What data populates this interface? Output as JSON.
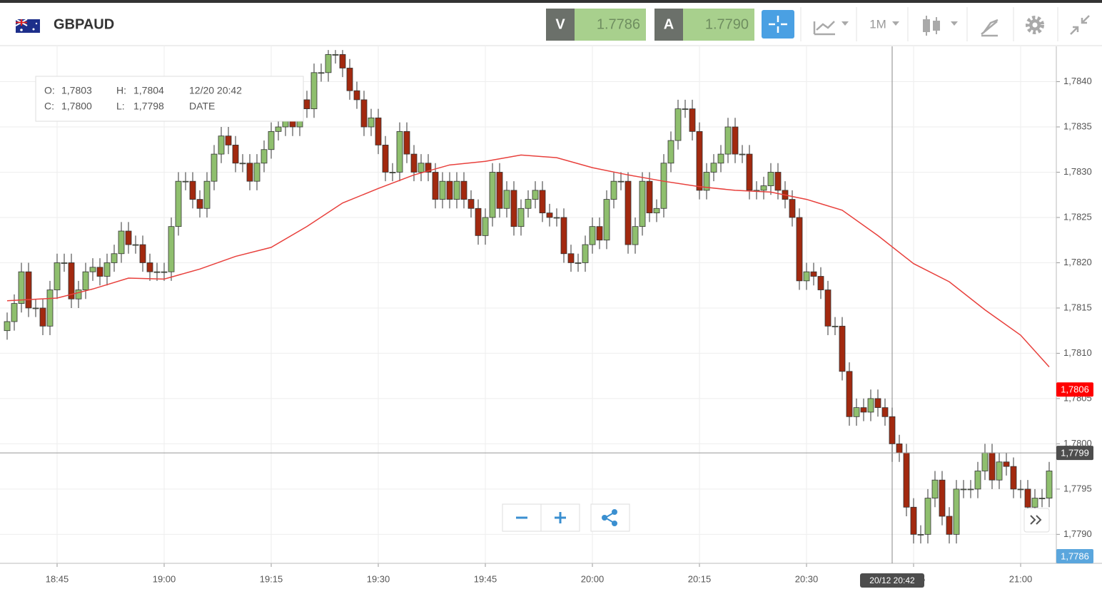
{
  "toolbar": {
    "symbol": "GBPAUD",
    "bid_label": "V",
    "bid": "1.7786",
    "ask_label": "A",
    "ask": "1.7790",
    "period": "1M"
  },
  "tooltip": {
    "o_label": "O:",
    "o": "1,7803",
    "h_label": "H:",
    "h": "1,7804",
    "date": "12/20 20:42",
    "c_label": "C:",
    "c": "1,7800",
    "l_label": "L:",
    "l": "1,7798",
    "date_label": "DATE"
  },
  "chart_data": {
    "type": "candlestick",
    "up_color": "#8fbf6e",
    "down_color": "#a2290f",
    "wick_color": "#333333",
    "xlim": [
      "18:37",
      "21:05"
    ],
    "xticks": [
      "18:45",
      "19:00",
      "19:15",
      "19:30",
      "19:45",
      "20:00",
      "20:15",
      "20:30",
      "20:45",
      "21:00"
    ],
    "ylim": [
      1.77868,
      1.78439
    ],
    "yticks": [
      {
        "value": 1.779,
        "label": "1,7790"
      },
      {
        "value": 1.7795,
        "label": "1,7795"
      },
      {
        "value": 1.78,
        "label": "1,7800"
      },
      {
        "value": 1.7805,
        "label": "1,7805"
      },
      {
        "value": 1.781,
        "label": "1,7810"
      },
      {
        "value": 1.7815,
        "label": "1,7815"
      },
      {
        "value": 1.782,
        "label": "1,7820"
      },
      {
        "value": 1.7825,
        "label": "1,7825"
      },
      {
        "value": 1.783,
        "label": "1,7830"
      },
      {
        "value": 1.7835,
        "label": "1,7835"
      },
      {
        "value": 1.784,
        "label": "1,7840"
      }
    ],
    "grid": true,
    "x": [
      "18:38",
      "18:39",
      "18:40",
      "18:41",
      "18:42",
      "18:43",
      "18:44",
      "18:45",
      "18:46",
      "18:47",
      "18:48",
      "18:49",
      "18:50",
      "18:51",
      "18:52",
      "18:53",
      "18:54",
      "18:55",
      "18:56",
      "18:57",
      "18:58",
      "18:59",
      "19:00",
      "19:01",
      "19:02",
      "19:03",
      "19:04",
      "19:05",
      "19:06",
      "19:07",
      "19:08",
      "19:09",
      "19:10",
      "19:11",
      "19:12",
      "19:13",
      "19:14",
      "19:15",
      "19:16",
      "19:17",
      "19:18",
      "19:19",
      "19:20",
      "19:21",
      "19:22",
      "19:23",
      "19:24",
      "19:25",
      "19:26",
      "19:27",
      "19:28",
      "19:29",
      "19:30",
      "19:31",
      "19:32",
      "19:33",
      "19:34",
      "19:35",
      "19:36",
      "19:37",
      "19:38",
      "19:39",
      "19:40",
      "19:41",
      "19:42",
      "19:43",
      "19:44",
      "19:45",
      "19:46",
      "19:47",
      "19:48",
      "19:49",
      "19:50",
      "19:51",
      "19:52",
      "19:53",
      "19:54",
      "19:55",
      "19:56",
      "19:57",
      "19:58",
      "19:59",
      "20:00",
      "20:01",
      "20:02",
      "20:03",
      "20:04",
      "20:05",
      "20:06",
      "20:07",
      "20:08",
      "20:09",
      "20:10",
      "20:11",
      "20:12",
      "20:13",
      "20:14",
      "20:15",
      "20:16",
      "20:17",
      "20:18",
      "20:19",
      "20:20",
      "20:21",
      "20:22",
      "20:23",
      "20:24",
      "20:25",
      "20:26",
      "20:27",
      "20:28",
      "20:29",
      "20:30",
      "20:31",
      "20:32",
      "20:33",
      "20:34",
      "20:35",
      "20:36",
      "20:37",
      "20:38",
      "20:39",
      "20:40",
      "20:41",
      "20:42",
      "20:43",
      "20:44",
      "20:45",
      "20:46",
      "20:47",
      "20:48",
      "20:49",
      "20:50",
      "20:51",
      "20:52",
      "20:53",
      "20:54",
      "20:55",
      "20:56",
      "20:57",
      "20:58",
      "20:59",
      "21:00",
      "21:01",
      "21:02",
      "21:03",
      "21:04"
    ],
    "candles": [
      [
        1.78125,
        1.78145,
        1.78115,
        1.78135
      ],
      [
        1.78135,
        1.78165,
        1.78125,
        1.78155
      ],
      [
        1.78155,
        1.782,
        1.78145,
        1.7819
      ],
      [
        1.7819,
        1.782,
        1.7814,
        1.7815
      ],
      [
        1.7815,
        1.7816,
        1.7814,
        1.7815
      ],
      [
        1.7815,
        1.7816,
        1.7812,
        1.7813
      ],
      [
        1.7813,
        1.7818,
        1.7812,
        1.7817
      ],
      [
        1.7817,
        1.7821,
        1.7816,
        1.782
      ],
      [
        1.782,
        1.7821,
        1.7819,
        1.782
      ],
      [
        1.782,
        1.7821,
        1.7815,
        1.7816
      ],
      [
        1.7816,
        1.7818,
        1.7815,
        1.7817
      ],
      [
        1.7817,
        1.782,
        1.7816,
        1.7819
      ],
      [
        1.7819,
        1.78205,
        1.7818,
        1.78195
      ],
      [
        1.78195,
        1.78205,
        1.78175,
        1.78185
      ],
      [
        1.78185,
        1.7821,
        1.78175,
        1.782
      ],
      [
        1.782,
        1.7822,
        1.7819,
        1.7821
      ],
      [
        1.7821,
        1.78245,
        1.782,
        1.78235
      ],
      [
        1.78235,
        1.78245,
        1.7821,
        1.7822
      ],
      [
        1.7822,
        1.7823,
        1.7821,
        1.7822
      ],
      [
        1.7822,
        1.7823,
        1.7819,
        1.782
      ],
      [
        1.782,
        1.7821,
        1.7818,
        1.7819
      ],
      [
        1.7819,
        1.782,
        1.7818,
        1.7819
      ],
      [
        1.7819,
        1.782,
        1.7818,
        1.7819
      ],
      [
        1.7819,
        1.7825,
        1.7818,
        1.7824
      ],
      [
        1.7824,
        1.783,
        1.7823,
        1.7829
      ],
      [
        1.7829,
        1.783,
        1.7828,
        1.7829
      ],
      [
        1.7829,
        1.783,
        1.7826,
        1.7827
      ],
      [
        1.7827,
        1.7828,
        1.7825,
        1.7826
      ],
      [
        1.7826,
        1.783,
        1.7825,
        1.7829
      ],
      [
        1.7829,
        1.7833,
        1.7828,
        1.7832
      ],
      [
        1.7832,
        1.7835,
        1.7831,
        1.7834
      ],
      [
        1.7834,
        1.7835,
        1.7832,
        1.7833
      ],
      [
        1.7833,
        1.7834,
        1.783,
        1.7831
      ],
      [
        1.7831,
        1.7832,
        1.783,
        1.7831
      ],
      [
        1.7831,
        1.7832,
        1.7828,
        1.7829
      ],
      [
        1.7829,
        1.7832,
        1.7828,
        1.7831
      ],
      [
        1.7831,
        1.78335,
        1.783,
        1.78325
      ],
      [
        1.78325,
        1.78355,
        1.78315,
        1.78345
      ],
      [
        1.78345,
        1.7836,
        1.78335,
        1.7835
      ],
      [
        1.7835,
        1.7837,
        1.7834,
        1.7836
      ],
      [
        1.7836,
        1.7837,
        1.7834,
        1.7835
      ],
      [
        1.7835,
        1.7839,
        1.7834,
        1.7838
      ],
      [
        1.7838,
        1.7839,
        1.7836,
        1.7837
      ],
      [
        1.7837,
        1.7842,
        1.7836,
        1.7841
      ],
      [
        1.7841,
        1.7842,
        1.784,
        1.7841
      ],
      [
        1.7841,
        1.78435,
        1.784,
        1.7843
      ],
      [
        1.7843,
        1.78435,
        1.7842,
        1.7843
      ],
      [
        1.7843,
        1.78435,
        1.78405,
        1.78415
      ],
      [
        1.78415,
        1.78425,
        1.7838,
        1.7839
      ],
      [
        1.7839,
        1.784,
        1.7837,
        1.7838
      ],
      [
        1.7838,
        1.7839,
        1.7834,
        1.7835
      ],
      [
        1.7835,
        1.7837,
        1.7834,
        1.7836
      ],
      [
        1.7836,
        1.7837,
        1.7832,
        1.7833
      ],
      [
        1.7833,
        1.7834,
        1.7829,
        1.783
      ],
      [
        1.783,
        1.7831,
        1.7829,
        1.783
      ],
      [
        1.783,
        1.78355,
        1.7829,
        1.78345
      ],
      [
        1.78345,
        1.78355,
        1.7831,
        1.7832
      ],
      [
        1.7832,
        1.7833,
        1.7829,
        1.783
      ],
      [
        1.783,
        1.7832,
        1.7829,
        1.7831
      ],
      [
        1.7831,
        1.7832,
        1.7829,
        1.783
      ],
      [
        1.783,
        1.7831,
        1.7826,
        1.7827
      ],
      [
        1.7827,
        1.783,
        1.7826,
        1.7829
      ],
      [
        1.7829,
        1.783,
        1.7826,
        1.7827
      ],
      [
        1.7827,
        1.783,
        1.7826,
        1.7829
      ],
      [
        1.7829,
        1.783,
        1.7826,
        1.7827
      ],
      [
        1.7827,
        1.7828,
        1.7825,
        1.7826
      ],
      [
        1.7826,
        1.7827,
        1.7822,
        1.7823
      ],
      [
        1.7823,
        1.7826,
        1.7822,
        1.7825
      ],
      [
        1.7825,
        1.7831,
        1.7824,
        1.783
      ],
      [
        1.783,
        1.7831,
        1.7825,
        1.7826
      ],
      [
        1.7826,
        1.7829,
        1.7825,
        1.7828
      ],
      [
        1.7828,
        1.7829,
        1.7823,
        1.7824
      ],
      [
        1.7824,
        1.7827,
        1.7823,
        1.7826
      ],
      [
        1.7826,
        1.7828,
        1.7825,
        1.7827
      ],
      [
        1.7827,
        1.7829,
        1.7826,
        1.7828
      ],
      [
        1.7828,
        1.7829,
        1.78245,
        1.78255
      ],
      [
        1.78255,
        1.78265,
        1.7824,
        1.7825
      ],
      [
        1.7825,
        1.7826,
        1.7824,
        1.7825
      ],
      [
        1.7825,
        1.7826,
        1.782,
        1.7821
      ],
      [
        1.7821,
        1.7822,
        1.7819,
        1.782
      ],
      [
        1.782,
        1.7821,
        1.7819,
        1.782
      ],
      [
        1.782,
        1.7823,
        1.7819,
        1.7822
      ],
      [
        1.7822,
        1.7825,
        1.7821,
        1.7824
      ],
      [
        1.7824,
        1.7825,
        1.78215,
        1.78225
      ],
      [
        1.78225,
        1.7828,
        1.78215,
        1.7827
      ],
      [
        1.7827,
        1.783,
        1.7826,
        1.7829
      ],
      [
        1.7829,
        1.783,
        1.7828,
        1.7829
      ],
      [
        1.7829,
        1.783,
        1.7821,
        1.7822
      ],
      [
        1.7822,
        1.7825,
        1.7821,
        1.7824
      ],
      [
        1.7824,
        1.783,
        1.7823,
        1.7829
      ],
      [
        1.7829,
        1.783,
        1.78245,
        1.78255
      ],
      [
        1.78255,
        1.7827,
        1.78245,
        1.7826
      ],
      [
        1.7826,
        1.7832,
        1.7825,
        1.7831
      ],
      [
        1.7831,
        1.78345,
        1.783,
        1.78335
      ],
      [
        1.78335,
        1.7838,
        1.78325,
        1.7837
      ],
      [
        1.7837,
        1.7838,
        1.7836,
        1.7837
      ],
      [
        1.7837,
        1.7838,
        1.78335,
        1.78345
      ],
      [
        1.78345,
        1.78355,
        1.7827,
        1.7828
      ],
      [
        1.7828,
        1.7831,
        1.7827,
        1.783
      ],
      [
        1.783,
        1.7832,
        1.7829,
        1.7831
      ],
      [
        1.7831,
        1.7833,
        1.783,
        1.7832
      ],
      [
        1.7832,
        1.7836,
        1.7831,
        1.7835
      ],
      [
        1.7835,
        1.7836,
        1.7831,
        1.7832
      ],
      [
        1.7832,
        1.7833,
        1.7831,
        1.7832
      ],
      [
        1.7832,
        1.7833,
        1.7827,
        1.7828
      ],
      [
        1.7828,
        1.7829,
        1.7827,
        1.7828
      ],
      [
        1.7828,
        1.78295,
        1.7827,
        1.78285
      ],
      [
        1.78285,
        1.7831,
        1.78275,
        1.783
      ],
      [
        1.783,
        1.7831,
        1.7827,
        1.7828
      ],
      [
        1.7828,
        1.7829,
        1.7826,
        1.7827
      ],
      [
        1.7827,
        1.7828,
        1.7824,
        1.7825
      ],
      [
        1.7825,
        1.7826,
        1.7817,
        1.7818
      ],
      [
        1.7818,
        1.782,
        1.7817,
        1.7819
      ],
      [
        1.7819,
        1.782,
        1.78175,
        1.78185
      ],
      [
        1.78185,
        1.78195,
        1.7816,
        1.7817
      ],
      [
        1.7817,
        1.7818,
        1.7812,
        1.7813
      ],
      [
        1.7813,
        1.7814,
        1.7812,
        1.7813
      ],
      [
        1.7813,
        1.7814,
        1.7807,
        1.7808
      ],
      [
        1.7808,
        1.7809,
        1.7802,
        1.7803
      ],
      [
        1.7803,
        1.7805,
        1.7802,
        1.7804
      ],
      [
        1.7804,
        1.7805,
        1.78025,
        1.78035
      ],
      [
        1.78035,
        1.7806,
        1.78025,
        1.7805
      ],
      [
        1.7805,
        1.7806,
        1.7803,
        1.7804
      ],
      [
        1.7804,
        1.7805,
        1.7802,
        1.7803
      ],
      [
        1.7803,
        1.7804,
        1.7798,
        1.78
      ],
      [
        1.78,
        1.7801,
        1.7798,
        1.7799
      ],
      [
        1.7799,
        1.78,
        1.7792,
        1.7793
      ],
      [
        1.7793,
        1.7794,
        1.7789,
        1.779
      ],
      [
        1.779,
        1.7791,
        1.7789,
        1.779
      ],
      [
        1.779,
        1.7795,
        1.7789,
        1.7794
      ],
      [
        1.7794,
        1.7797,
        1.7793,
        1.7796
      ],
      [
        1.7796,
        1.7797,
        1.7791,
        1.7792
      ],
      [
        1.7792,
        1.7793,
        1.7789,
        1.779
      ],
      [
        1.779,
        1.7796,
        1.7789,
        1.7795
      ],
      [
        1.7795,
        1.7796,
        1.7794,
        1.7795
      ],
      [
        1.7795,
        1.7796,
        1.7794,
        1.7795
      ],
      [
        1.7795,
        1.7798,
        1.7794,
        1.7797
      ],
      [
        1.7797,
        1.78,
        1.7796,
        1.7799
      ],
      [
        1.7799,
        1.78,
        1.7795,
        1.7796
      ],
      [
        1.7796,
        1.7799,
        1.7795,
        1.7798
      ],
      [
        1.7798,
        1.7799,
        1.77965,
        1.77975
      ],
      [
        1.77975,
        1.77985,
        1.7794,
        1.7795
      ],
      [
        1.7795,
        1.7796,
        1.7794,
        1.7795
      ],
      [
        1.7795,
        1.7796,
        1.7792,
        1.7793
      ],
      [
        1.7793,
        1.7795,
        1.7792,
        1.7794
      ],
      [
        1.7794,
        1.7795,
        1.7793,
        1.7794
      ],
      [
        1.7794,
        1.7798,
        1.7793,
        1.7797
      ]
    ],
    "line": {
      "color": "#e8403c",
      "x": [
        "18:38",
        "18:45",
        "18:50",
        "18:55",
        "19:00",
        "19:05",
        "19:10",
        "19:15",
        "19:20",
        "19:25",
        "19:30",
        "19:35",
        "19:40",
        "19:45",
        "19:50",
        "19:55",
        "20:00",
        "20:05",
        "20:10",
        "20:15",
        "20:20",
        "20:25",
        "20:30",
        "20:35",
        "20:40",
        "20:45",
        "20:50",
        "20:55",
        "21:00",
        "21:04"
      ],
      "values": [
        1.78158,
        1.78161,
        1.78171,
        1.78183,
        1.78182,
        1.78193,
        1.78207,
        1.78217,
        1.7824,
        1.78266,
        1.78282,
        1.78297,
        1.78308,
        1.78312,
        1.78319,
        1.78316,
        1.78305,
        1.78297,
        1.7829,
        1.78284,
        1.7828,
        1.78278,
        1.7827,
        1.78258,
        1.7823,
        1.78199,
        1.78179,
        1.78148,
        1.7812,
        1.78085
      ]
    },
    "price_labels": [
      {
        "value": 1.7806,
        "label": "1,7806",
        "color": "#ff0000"
      },
      {
        "value": 1.7799,
        "label": "1,7799",
        "color": "#4d4d4d"
      },
      {
        "value": 1.7786,
        "label": "1,7786",
        "color": "#5aa6dd"
      }
    ],
    "crosshair": {
      "x": "20:42",
      "label": "20/12 20:42"
    }
  }
}
